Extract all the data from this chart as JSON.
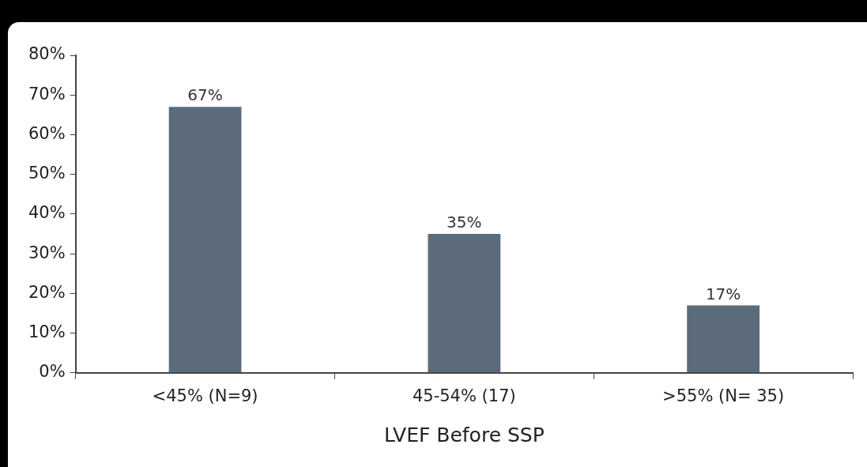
{
  "chart_data": {
    "type": "bar",
    "xlabel": "LVEF Before SSP",
    "categories": [
      "<45% (N=9)",
      "45-54% (17)",
      ">55% (N= 35)"
    ],
    "values": [
      67,
      35,
      17
    ],
    "value_labels": [
      "67%",
      "35%",
      "17%"
    ],
    "color": "#5b6b7c",
    "ylim": [
      0,
      80
    ],
    "yticks": [
      {
        "value": 0,
        "label": "0%"
      },
      {
        "value": 10,
        "label": "10%"
      },
      {
        "value": 20,
        "label": "20%"
      },
      {
        "value": 30,
        "label": "30%"
      },
      {
        "value": 40,
        "label": "40%"
      },
      {
        "value": 50,
        "label": "50%"
      },
      {
        "value": 60,
        "label": "60%"
      },
      {
        "value": 70,
        "label": "70%"
      },
      {
        "value": 80,
        "label": "80%"
      }
    ],
    "grid": false,
    "legend": false
  }
}
